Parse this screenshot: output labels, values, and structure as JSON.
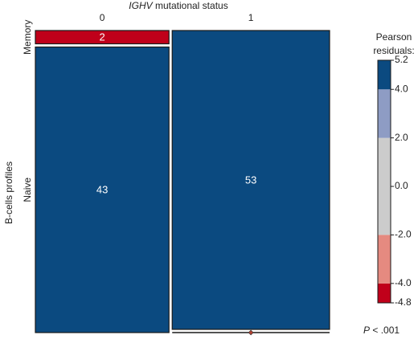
{
  "chart_data": {
    "type": "mosaic",
    "title_italic": "IGHV",
    "title": "mutational status",
    "y_label": "B-cells profiles",
    "categories": [
      "0",
      "1"
    ],
    "series": [
      {
        "name": "Memory",
        "values": [
          2,
          0
        ],
        "colors": [
          "#c0001a",
          "#0b4a80"
        ]
      },
      {
        "name": "Naive",
        "values": [
          43,
          53
        ],
        "colors": [
          "#0b4a80",
          "#0b4a80"
        ]
      }
    ],
    "legend_title": [
      "Pearson",
      "residuals:"
    ],
    "legend_lim": [
      -4.8,
      5.2
    ],
    "legend_ticks": [
      5.2,
      {
        "value": 4,
        "label": "4.0"
      },
      {
        "value": 2,
        "label": "2.0"
      },
      {
        "value": 0,
        "label": "0.0"
      },
      {
        "value": -2,
        "label": "-2.0"
      },
      {
        "value": -4,
        "label": "-4.0"
      },
      -4.8
    ],
    "legend_breaks": [
      -4.8,
      -4,
      -2,
      2,
      4,
      5.2
    ],
    "legend_colors": [
      "#c0001a",
      "#e58a80",
      "#cccccc",
      "#8e9cc4",
      "#0b4a80"
    ],
    "p_italic": "P",
    "p_text": "< .001"
  }
}
